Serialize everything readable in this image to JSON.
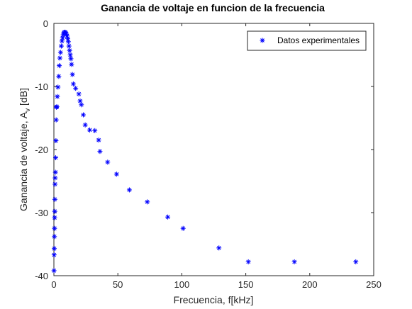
{
  "chart_data": {
    "type": "scatter",
    "title": "Ganancia de voltaje en funcion de la frecuencia",
    "xlabel": "Frecuencia, f[kHz]",
    "ylabel": "Ganancia de voltaje, A",
    "ylabel_sub": "v",
    "ylabel_unit": " [dB]",
    "xlim": [
      0,
      250
    ],
    "ylim": [
      -40,
      0
    ],
    "xticks": [
      0,
      50,
      100,
      150,
      200,
      250
    ],
    "yticks": [
      -40,
      -30,
      -20,
      -10,
      0
    ],
    "grid": false,
    "legend_position": "top-right",
    "marker": "asterisk",
    "color": "#0000ff",
    "series": [
      {
        "name": "Datos experimentales",
        "x": [
          0.1,
          0.2,
          0.3,
          0.4,
          0.5,
          0.6,
          0.7,
          0.8,
          0.9,
          1.0,
          1.2,
          1.4,
          1.6,
          1.8,
          2.0,
          2.3,
          2.7,
          3.2,
          3.8,
          4.2,
          4.7,
          5.2,
          5.8,
          6.3,
          6.8,
          7.3,
          7.8,
          8.3,
          8.8,
          9.3,
          9.8,
          10.3,
          10.8,
          11.3,
          11.8,
          12.3,
          12.8,
          13.3,
          13.8,
          14.5,
          15.2,
          17.0,
          19.5,
          20.5,
          21.5,
          23.0,
          24.5,
          28.0,
          32.0,
          35.0,
          36.0,
          42.0,
          49.0,
          59.0,
          73.0,
          89.0,
          101.0,
          129.0,
          152.0,
          188.0,
          236.0
        ],
        "y": [
          -39.2,
          -36.7,
          -35.7,
          -33.8,
          -32.5,
          -30.8,
          -29.8,
          -27.9,
          -25.5,
          -24.5,
          -23.6,
          -21.3,
          -18.6,
          -15.3,
          -13.3,
          -13.2,
          -11.6,
          -10.1,
          -8.4,
          -6.7,
          -5.5,
          -4.6,
          -3.6,
          -2.8,
          -2.3,
          -1.8,
          -1.5,
          -1.4,
          -1.4,
          -1.5,
          -1.7,
          -2.0,
          -2.4,
          -2.9,
          -3.6,
          -4.3,
          -5.0,
          -5.6,
          -6.5,
          -8.1,
          -9.6,
          -10.3,
          -11.2,
          -12.3,
          -12.9,
          -14.5,
          -16.1,
          -16.9,
          -17.0,
          -18.5,
          -20.3,
          -22.0,
          -23.9,
          -26.4,
          -28.3,
          -30.7,
          -32.5,
          -35.6,
          -37.8,
          -37.8,
          -37.8
        ]
      }
    ]
  }
}
